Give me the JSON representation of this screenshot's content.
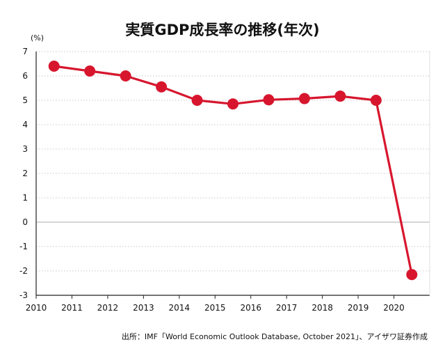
{
  "chart_data": {
    "type": "line",
    "title": "実質GDP成長率の推移(年次)",
    "ylabel": "(%)",
    "xlabel": "",
    "x_ticks": [
      "2010",
      "2011",
      "2012",
      "2013",
      "2014",
      "2015",
      "2016",
      "2017",
      "2018",
      "2019",
      "2020"
    ],
    "y_ticks": [
      "7",
      "6",
      "5",
      "4",
      "3",
      "2",
      "1",
      "0",
      "-1",
      "-2",
      "-3"
    ],
    "xlim": [
      2010,
      2021
    ],
    "ylim": [
      -3,
      7
    ],
    "grid": "horizontal",
    "legend": "none",
    "series": [
      {
        "color": "#d7162e",
        "x": [
          2010.5,
          2011.5,
          2012.5,
          2013.5,
          2014.5,
          2015.5,
          2016.5,
          2017.5,
          2018.5,
          2019.5,
          2020.5
        ],
        "values": [
          6.4,
          6.2,
          6.0,
          5.55,
          5.0,
          4.85,
          5.02,
          5.07,
          5.17,
          5.0,
          -2.15
        ]
      }
    ],
    "source": "出所：IMF「World Economic Outlook Database, October 2021」、アイザワ証券作成"
  }
}
